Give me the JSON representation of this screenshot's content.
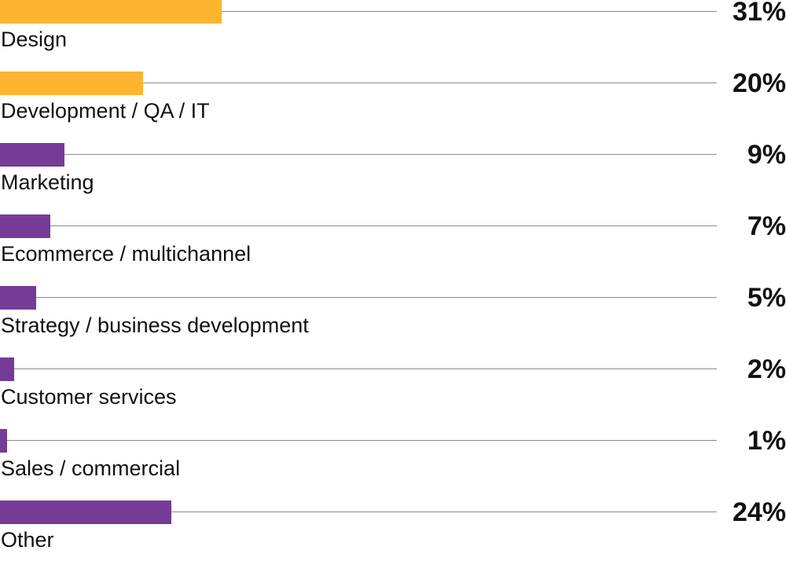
{
  "chart_data": {
    "type": "bar",
    "orientation": "horizontal",
    "categories": [
      "Design",
      "Development / QA / IT",
      "Marketing",
      "Ecommerce / multichannel",
      "Strategy / business development",
      "Customer services",
      "Sales / commercial",
      "Other"
    ],
    "values": [
      31,
      20,
      9,
      7,
      5,
      2,
      1,
      24
    ],
    "value_labels": [
      "31%",
      "20%",
      "9%",
      "7%",
      "5%",
      "2%",
      "1%",
      "24%"
    ],
    "bar_colors": [
      "#FDB52F",
      "#FDB52F",
      "#753B97",
      "#753B97",
      "#753B97",
      "#753B97",
      "#753B97",
      "#753B97"
    ],
    "xlim": [
      0,
      100
    ],
    "grid": false,
    "legend": "none"
  }
}
